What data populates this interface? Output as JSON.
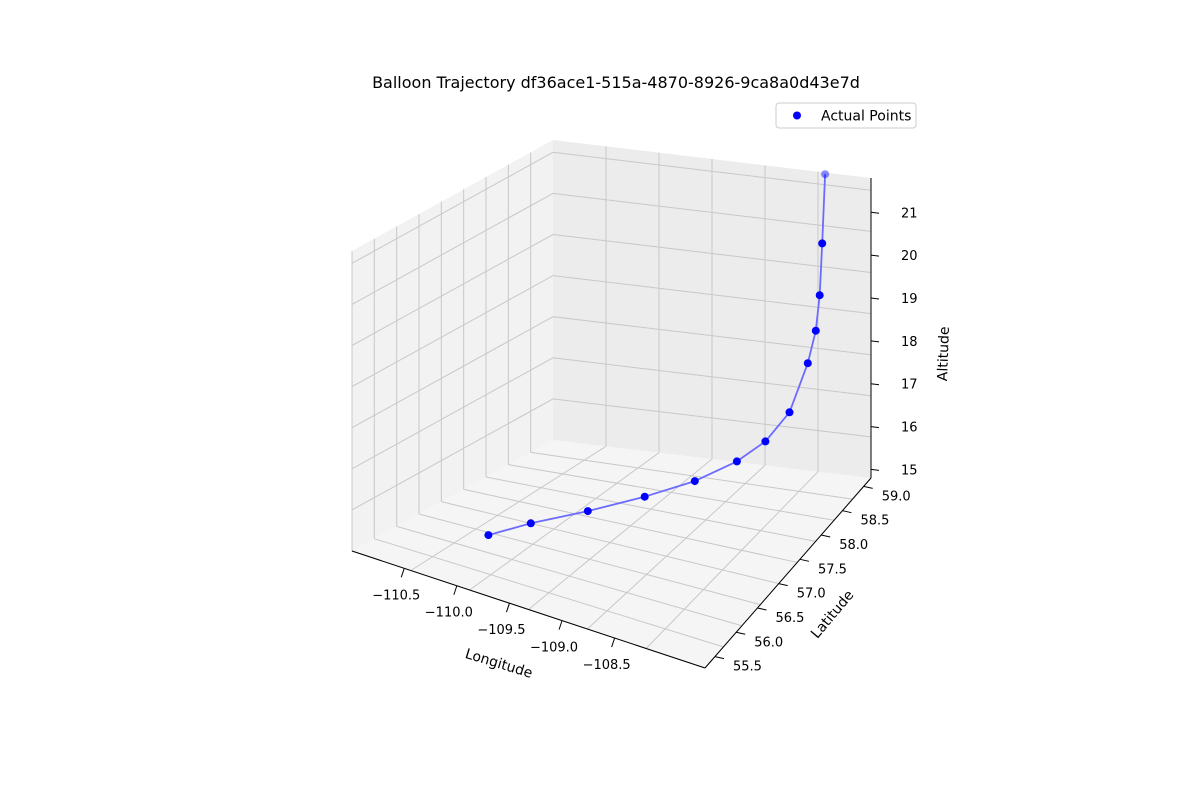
{
  "chart_data": {
    "type": "scatter",
    "projection": "3d",
    "title": "Balloon Trajectory df36ace1-515a-4870-8926-9ca8a0d43e7d",
    "xlabel": "Longitude",
    "ylabel": "Latitude",
    "zlabel": "Altitude",
    "legend": {
      "label": "Actual Points",
      "position": "top-right"
    },
    "grid": true,
    "colors": {
      "points": "#0000ff",
      "line": "#6b6bff",
      "pane": "#f2f2f2",
      "grid": "#c8c8c8"
    },
    "xticks": [
      "−110.5",
      "−110.0",
      "−109.5",
      "−109.0",
      "−108.5"
    ],
    "yticks": [
      "55.5",
      "56.0",
      "56.5",
      "57.0",
      "57.5",
      "58.0",
      "58.5",
      "59.0"
    ],
    "zticks": [
      "15",
      "16",
      "17",
      "18",
      "19",
      "20",
      "21"
    ],
    "xlim": [
      -110.7,
      -108.5
    ],
    "ylim": [
      55.3,
      59.3
    ],
    "zlim": [
      14.8,
      21.8
    ],
    "series": [
      {
        "name": "Actual Points",
        "x": [
          -110.0,
          -109.88,
          -109.66,
          -109.44,
          -109.25,
          -109.08,
          -108.97,
          -108.89,
          -108.85,
          -108.83,
          -108.82,
          -108.81,
          -108.8
        ],
        "y": [
          56.0,
          56.5,
          57.0,
          57.5,
          57.95,
          58.3,
          58.55,
          58.8,
          59.05,
          59.15,
          59.2,
          59.22,
          59.25
        ],
        "z": [
          15.0,
          15.0,
          15.05,
          15.15,
          15.3,
          15.6,
          15.95,
          16.5,
          17.5,
          18.2,
          19.0,
          20.2,
          21.8
        ]
      }
    ]
  }
}
